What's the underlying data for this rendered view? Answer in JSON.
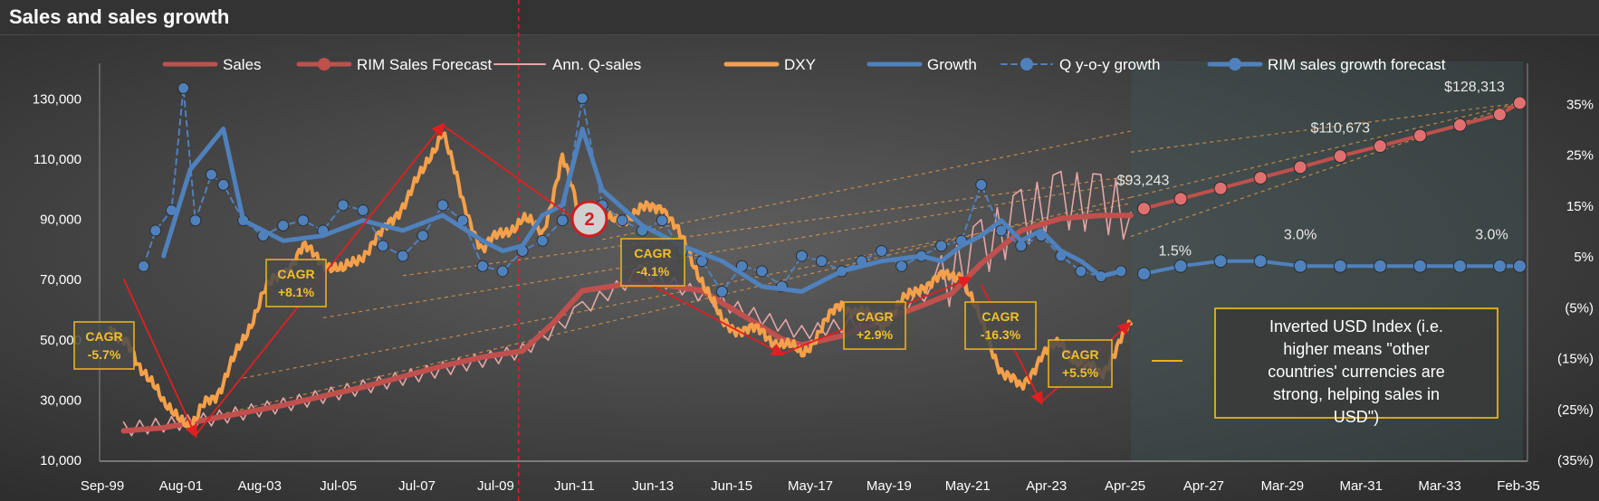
{
  "title": "Sales and sales growth",
  "legend": [
    {
      "label": "Sales",
      "color": "#c0504d",
      "style": "thick-line"
    },
    {
      "label": "RIM Sales Forecast",
      "color": "#c0504d",
      "style": "line-marker"
    },
    {
      "label": "Ann. Q-sales",
      "color": "#e6a6a6",
      "style": "thin-line"
    },
    {
      "label": "DXY",
      "color": "#f5a04a",
      "style": "thick-line"
    },
    {
      "label": "Growth",
      "color": "#4f81bd",
      "style": "thick-line"
    },
    {
      "label": "Q y-o-y growth",
      "color": "#4f81bd",
      "style": "dash-marker"
    },
    {
      "label": "RIM sales growth forecast",
      "color": "#4f81bd",
      "style": "line-marker"
    }
  ],
  "chart_data": {
    "type": "line",
    "x_tick_labels": [
      "Sep-99",
      "Aug-01",
      "Aug-03",
      "Jul-05",
      "Jul-07",
      "Jul-09",
      "Jun-11",
      "Jun-13",
      "Jun-15",
      "May-17",
      "May-19",
      "May-21",
      "Apr-23",
      "Apr-25",
      "Apr-27",
      "Mar-29",
      "Mar-31",
      "Mar-33",
      "Feb-35"
    ],
    "x_range": [
      1999.67,
      2035.08
    ],
    "y_left": {
      "ticks": [
        "10,000",
        "30,000",
        "50,000",
        "70,000",
        "90,000",
        "110,000",
        "130,000"
      ],
      "range": [
        10000,
        140000
      ]
    },
    "y_right": {
      "ticks": [
        "(35%)",
        "(25%)",
        "(15%)",
        "(5%)",
        "5%",
        "15%",
        "25%",
        "35%"
      ],
      "range": [
        -0.35,
        0.42
      ]
    },
    "series": [
      {
        "name": "Sales",
        "axis": "left",
        "x": [
          2000.0,
          2001.0,
          2002.0,
          2003.0,
          2004.0,
          2005.0,
          2006.0,
          2007.0,
          2008.0,
          2009.0,
          2010.0,
          2010.75,
          2011.5,
          2012.5,
          2013.5,
          2014.5,
          2015.5,
          2016.5,
          2017.0,
          2018.0,
          2019.0,
          2020.0,
          2020.75,
          2021.5,
          2022.5,
          2023.5,
          2024.5,
          2025.25
        ],
        "values": [
          19500,
          20500,
          23000,
          25500,
          28000,
          31000,
          34000,
          37500,
          41000,
          44000,
          46000,
          55000,
          66000,
          68000,
          68000,
          66000,
          58000,
          50000,
          48000,
          51000,
          56000,
          61000,
          65000,
          75000,
          86000,
          90000,
          91000,
          91000
        ]
      },
      {
        "name": "RIM Sales Forecast",
        "axis": "left",
        "x": [
          2025.58,
          2026.5,
          2027.5,
          2028.5,
          2029.5,
          2030.5,
          2031.5,
          2032.5,
          2033.5,
          2034.5,
          2035.0
        ],
        "values": [
          93243,
          96500,
          100000,
          103500,
          107000,
          110673,
          114000,
          117500,
          121000,
          124500,
          128313
        ]
      },
      {
        "name": "Ann. Q-sales",
        "axis": "left",
        "x": [
          2000.0,
          2002.0,
          2004.0,
          2006.0,
          2008.0,
          2010.0,
          2011.5,
          2013.0,
          2015.0,
          2017.0,
          2019.0,
          2020.5,
          2021.5,
          2022.5,
          2023.5,
          2024.5,
          2025.25
        ],
        "values": [
          20000,
          23000,
          28000,
          34000,
          40000,
          46000,
          60000,
          72000,
          62000,
          52000,
          57000,
          68000,
          80000,
          90000,
          96000,
          95000,
          92000
        ]
      },
      {
        "name": "DXY",
        "axis": "left",
        "x": [
          1999.67,
          2000.5,
          2001.0,
          2001.67,
          2002.5,
          2003.5,
          2004.5,
          2005.5,
          2006.5,
          2007.5,
          2008.0,
          2008.5,
          2009.0,
          2010.0,
          2010.5,
          2011.0,
          2011.5,
          2012.5,
          2013.5,
          2014.5,
          2015.0,
          2016.0,
          2017.0,
          2018.0,
          2019.0,
          2020.0,
          2021.0,
          2021.5,
          2022.0,
          2022.5,
          2023.0,
          2023.5,
          2024.0,
          2024.5,
          2025.0,
          2025.25
        ],
        "values": [
          55000,
          40000,
          28000,
          22000,
          35000,
          65000,
          80000,
          72000,
          85000,
          105000,
          120000,
          95000,
          80000,
          90000,
          85000,
          110000,
          88000,
          90000,
          95000,
          70000,
          55000,
          52000,
          45000,
          62000,
          55000,
          68000,
          72000,
          55000,
          40000,
          33000,
          45000,
          48000,
          42000,
          38000,
          50000,
          55000
        ]
      },
      {
        "name": "Growth",
        "axis": "right",
        "x": [
          2001.0,
          2001.67,
          2002.5,
          2003.0,
          2004.0,
          2005.0,
          2006.0,
          2007.0,
          2008.0,
          2009.0,
          2009.5,
          2010.0,
          2010.5,
          2011.0,
          2011.5,
          2012.0,
          2013.0,
          2014.0,
          2015.0,
          2016.0,
          2017.0,
          2018.0,
          2019.0,
          2020.0,
          2020.5,
          2021.0,
          2021.5,
          2022.0,
          2022.5,
          2023.0,
          2023.5,
          2024.0,
          2024.5,
          2025.0
        ],
        "values": [
          0.05,
          0.22,
          0.3,
          0.12,
          0.08,
          0.09,
          0.12,
          0.1,
          0.13,
          0.08,
          0.06,
          0.07,
          0.13,
          0.15,
          0.3,
          0.18,
          0.11,
          0.07,
          0.04,
          -0.01,
          -0.02,
          0.02,
          0.04,
          0.05,
          0.04,
          0.07,
          0.09,
          0.12,
          0.08,
          0.1,
          0.06,
          0.04,
          0.01,
          0.02
        ]
      },
      {
        "name": "Q y-o-y growth",
        "axis": "right",
        "x": [
          2000.5,
          2000.8,
          2001.2,
          2001.5,
          2001.8,
          2002.2,
          2002.5,
          2003.0,
          2003.5,
          2004.0,
          2004.5,
          2005.0,
          2005.5,
          2006.0,
          2006.5,
          2007.0,
          2007.5,
          2008.0,
          2008.5,
          2009.0,
          2009.5,
          2010.0,
          2010.5,
          2011.0,
          2011.5,
          2012.0,
          2012.5,
          2013.0,
          2013.5,
          2014.0,
          2014.5,
          2015.0,
          2015.5,
          2016.0,
          2016.5,
          2017.0,
          2017.5,
          2018.0,
          2018.5,
          2019.0,
          2019.5,
          2020.0,
          2020.5,
          2021.0,
          2021.5,
          2022.0,
          2022.5,
          2023.0,
          2023.5,
          2024.0,
          2024.5,
          2025.0
        ],
        "values": [
          0.03,
          0.1,
          0.14,
          0.38,
          0.12,
          0.21,
          0.19,
          0.12,
          0.09,
          0.11,
          0.12,
          0.1,
          0.15,
          0.14,
          0.07,
          0.05,
          0.09,
          0.15,
          0.12,
          0.03,
          0.02,
          0.06,
          0.08,
          0.12,
          0.36,
          0.15,
          0.12,
          0.1,
          0.12,
          0.06,
          0.04,
          -0.02,
          0.03,
          0.02,
          -0.01,
          0.05,
          0.04,
          0.02,
          0.04,
          0.06,
          0.03,
          0.05,
          0.07,
          0.08,
          0.19,
          0.1,
          0.07,
          0.09,
          0.05,
          0.02,
          0.01,
          0.02
        ]
      },
      {
        "name": "RIM sales growth forecast",
        "axis": "right",
        "x": [
          2025.58,
          2026.5,
          2027.5,
          2028.5,
          2029.5,
          2030.5,
          2031.5,
          2032.5,
          2033.5,
          2034.5,
          2035.0
        ],
        "values": [
          0.015,
          0.03,
          0.04,
          0.04,
          0.03,
          0.03,
          0.03,
          0.03,
          0.03,
          0.03,
          0.03
        ]
      }
    ],
    "value_labels": [
      "$93,243",
      "$110,673",
      "$128,313",
      "1.5%",
      "3.0%",
      "3.0%"
    ],
    "cagr_boxes": [
      {
        "label": "CAGR",
        "value": "-5.7%"
      },
      {
        "label": "CAGR",
        "value": "+8.1%"
      },
      {
        "label": "CAGR",
        "value": "-4.1%"
      },
      {
        "label": "CAGR",
        "value": "+2.9%"
      },
      {
        "label": "CAGR",
        "value": "-16.3%"
      },
      {
        "label": "CAGR",
        "value": "+5.5%"
      }
    ],
    "marker_label": "2",
    "annotation": "Inverted USD Index (i.e. higher means \"other countries' currencies are strong, helping sales in USD\")",
    "grid": false
  }
}
